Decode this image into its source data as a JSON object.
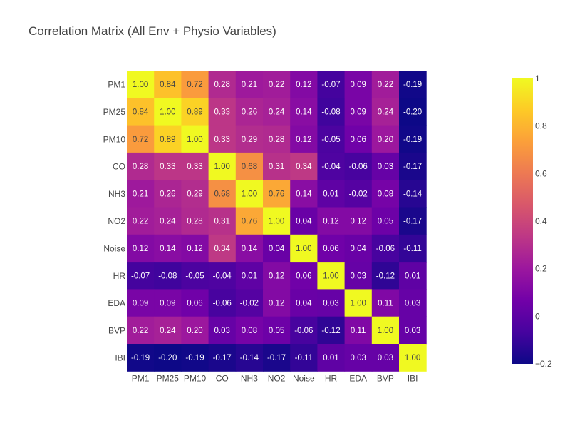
{
  "chart_data": {
    "type": "heatmap",
    "title": "Correlation Matrix (All Env + Physio Variables)",
    "x_categories": [
      "PM1",
      "PM25",
      "PM10",
      "CO",
      "NH3",
      "NO2",
      "Noise",
      "HR",
      "EDA",
      "BVP",
      "IBI"
    ],
    "y_categories": [
      "PM1",
      "PM25",
      "PM10",
      "CO",
      "NH3",
      "NO2",
      "Noise",
      "HR",
      "EDA",
      "BVP",
      "IBI"
    ],
    "values": [
      [
        1.0,
        0.84,
        0.72,
        0.28,
        0.21,
        0.22,
        0.12,
        -0.07,
        0.09,
        0.22,
        -0.19
      ],
      [
        0.84,
        1.0,
        0.89,
        0.33,
        0.26,
        0.24,
        0.14,
        -0.08,
        0.09,
        0.24,
        -0.2
      ],
      [
        0.72,
        0.89,
        1.0,
        0.33,
        0.29,
        0.28,
        0.12,
        -0.05,
        0.06,
        0.2,
        -0.19
      ],
      [
        0.28,
        0.33,
        0.33,
        1.0,
        0.68,
        0.31,
        0.34,
        -0.04,
        -0.06,
        0.03,
        -0.17
      ],
      [
        0.21,
        0.26,
        0.29,
        0.68,
        1.0,
        0.76,
        0.14,
        0.01,
        -0.02,
        0.08,
        -0.14
      ],
      [
        0.22,
        0.24,
        0.28,
        0.31,
        0.76,
        1.0,
        0.04,
        0.12,
        0.12,
        0.05,
        -0.17
      ],
      [
        0.12,
        0.14,
        0.12,
        0.34,
        0.14,
        0.04,
        1.0,
        0.06,
        0.04,
        -0.06,
        -0.11
      ],
      [
        -0.07,
        -0.08,
        -0.05,
        -0.04,
        0.01,
        0.12,
        0.06,
        1.0,
        0.03,
        -0.12,
        0.01
      ],
      [
        0.09,
        0.09,
        0.06,
        -0.06,
        -0.02,
        0.12,
        0.04,
        0.03,
        1.0,
        0.11,
        0.03
      ],
      [
        0.22,
        0.24,
        0.2,
        0.03,
        0.08,
        0.05,
        -0.06,
        -0.12,
        0.11,
        1.0,
        0.03
      ],
      [
        -0.19,
        -0.2,
        -0.19,
        -0.17,
        -0.14,
        -0.17,
        -0.11,
        0.01,
        0.03,
        0.03,
        1.0
      ]
    ],
    "zmin": -0.2,
    "zmax": 1,
    "colorscale": "plasma",
    "colorbar_ticks": [
      {
        "value": 1,
        "label": "1"
      },
      {
        "value": 0.8,
        "label": "0.8"
      },
      {
        "value": 0.6,
        "label": "0.6"
      },
      {
        "value": 0.4,
        "label": "0.4"
      },
      {
        "value": 0.2,
        "label": "0.2"
      },
      {
        "value": 0,
        "label": "0"
      },
      {
        "value": -0.2,
        "label": "−0.2"
      }
    ],
    "value_format": "2 decimals",
    "legend": "colorbar on right"
  },
  "colors": {
    "title": "#444444",
    "axis_text": "#444444",
    "plasma_stops": [
      "#0d0887",
      "#46039f",
      "#7201a8",
      "#9c179e",
      "#bd3786",
      "#d8576b",
      "#ed7953",
      "#fb9f3a",
      "#fdca26",
      "#f0f921"
    ]
  }
}
